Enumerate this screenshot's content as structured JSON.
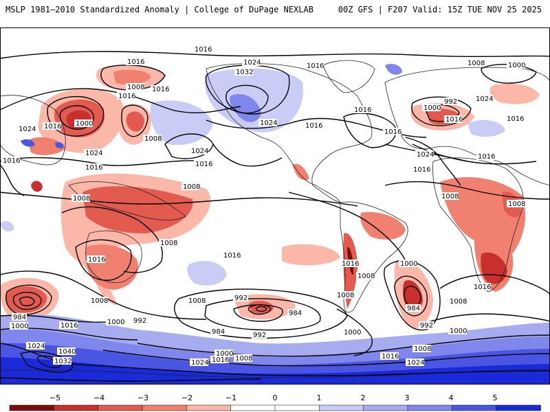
{
  "header": {
    "title_left": "MSLP 1981–2010 Standardized Anomaly | College of DuPage NEXLAB",
    "title_right": "00Z GFS | F207 Valid: 15Z TUE NOV 25 2025"
  },
  "colors": {
    "neg5": "#7a0d0d",
    "neg4": "#c8302e",
    "neg3": "#e35a4f",
    "neg2": "#f08070",
    "neg1": "#fbb7a8",
    "zero": "#ffffff",
    "pos1": "#c9cdf6",
    "pos2": "#a7acf1",
    "pos3": "#7f87ec",
    "pos4": "#4a56e2",
    "pos5": "#1a2ad8",
    "land": "#ffffff",
    "coast": "#222222",
    "isobar": "#000000"
  },
  "colorbar": {
    "ticks": [
      "−5",
      "−4",
      "−3",
      "−2",
      "−1",
      "0",
      "1",
      "2",
      "3",
      "4",
      "5"
    ]
  },
  "isobar_labels": [
    {
      "id": "np-1016",
      "text": "1016"
    },
    {
      "id": "npac-1016",
      "text": "1016"
    },
    {
      "id": "aleut-1008",
      "text": "1008"
    },
    {
      "id": "aleut-1016b",
      "text": "1016"
    },
    {
      "id": "aleut-1016c",
      "text": "1016"
    },
    {
      "id": "aleut-1000",
      "text": "1000"
    },
    {
      "id": "wpac-1016",
      "text": "1016"
    },
    {
      "id": "wpac-1024",
      "text": "1024"
    },
    {
      "id": "jp-1016",
      "text": "1016"
    },
    {
      "id": "jp-1024",
      "text": "1024"
    },
    {
      "id": "ec-1008",
      "text": "1008"
    },
    {
      "id": "ec-1016",
      "text": "1016"
    },
    {
      "id": "goa-1024",
      "text": "1024"
    },
    {
      "id": "npac-1024",
      "text": "1024"
    },
    {
      "id": "npac-1016b",
      "text": "1016"
    },
    {
      "id": "ak-1024",
      "text": "1024"
    },
    {
      "id": "ak-1032",
      "text": "1032"
    },
    {
      "id": "can-1024",
      "text": "1024"
    },
    {
      "id": "us-1016",
      "text": "1016"
    },
    {
      "id": "hud-1016",
      "text": "1016"
    },
    {
      "id": "natl-1016",
      "text": "1016"
    },
    {
      "id": "natl-1016b",
      "text": "1016"
    },
    {
      "id": "ice-1008",
      "text": "1008"
    },
    {
      "id": "eu-1000",
      "text": "1000"
    },
    {
      "id": "eu-992",
      "text": "992"
    },
    {
      "id": "eu-1000b",
      "text": "1000"
    },
    {
      "id": "eu-1016",
      "text": "1016"
    },
    {
      "id": "ru-1024",
      "text": "1024"
    },
    {
      "id": "ru-1016",
      "text": "1016"
    },
    {
      "id": "asia-1016",
      "text": "1016"
    },
    {
      "id": "af-1024",
      "text": "1024"
    },
    {
      "id": "af-1016",
      "text": "1016"
    },
    {
      "id": "af-1008",
      "text": "1008"
    },
    {
      "id": "af-1008b",
      "text": "1008"
    },
    {
      "id": "ind-1008",
      "text": "1008"
    },
    {
      "id": "ind-1008b",
      "text": "1008"
    },
    {
      "id": "ind-1016",
      "text": "1016"
    },
    {
      "id": "mc-1008",
      "text": "1008"
    },
    {
      "id": "spac-1016",
      "text": "1016"
    },
    {
      "id": "sa-1016",
      "text": "1016"
    },
    {
      "id": "sa-1008",
      "text": "1008"
    },
    {
      "id": "sa-1008b",
      "text": "1008"
    },
    {
      "id": "satl-1000",
      "text": "1000"
    },
    {
      "id": "satl-984",
      "text": "984"
    },
    {
      "id": "satl-992",
      "text": "992"
    },
    {
      "id": "satl-1008",
      "text": "1008"
    },
    {
      "id": "satl-1016",
      "text": "1016"
    },
    {
      "id": "satl-1000b",
      "text": "1000"
    },
    {
      "id": "sio-984",
      "text": "984"
    },
    {
      "id": "sio-1000",
      "text": "1000"
    },
    {
      "id": "sio-1008",
      "text": "1008"
    },
    {
      "id": "sio-1016",
      "text": "1016"
    },
    {
      "id": "sio-1024",
      "text": "1024"
    },
    {
      "id": "sio-1040",
      "text": "1040"
    },
    {
      "id": "sio-1032",
      "text": "1032"
    },
    {
      "id": "sio-1000b",
      "text": "1000"
    },
    {
      "id": "sio-992",
      "text": "992"
    },
    {
      "id": "spac-1008",
      "text": "1008"
    },
    {
      "id": "spac-992",
      "text": "992"
    },
    {
      "id": "spac-984",
      "text": "984"
    },
    {
      "id": "spac-984b",
      "text": "984"
    },
    {
      "id": "spac-992b",
      "text": "992"
    },
    {
      "id": "spac-1000",
      "text": "1000"
    },
    {
      "id": "spac-1008b",
      "text": "1008"
    },
    {
      "id": "spac-1016b",
      "text": "1016"
    },
    {
      "id": "spac-1024",
      "text": "1024"
    },
    {
      "id": "so-1008",
      "text": "1008"
    },
    {
      "id": "so-1016",
      "text": "1016"
    },
    {
      "id": "so-1024",
      "text": "1024"
    },
    {
      "id": "dp-1008",
      "text": "1008"
    },
    {
      "id": "dp-1000",
      "text": "1000"
    }
  ]
}
